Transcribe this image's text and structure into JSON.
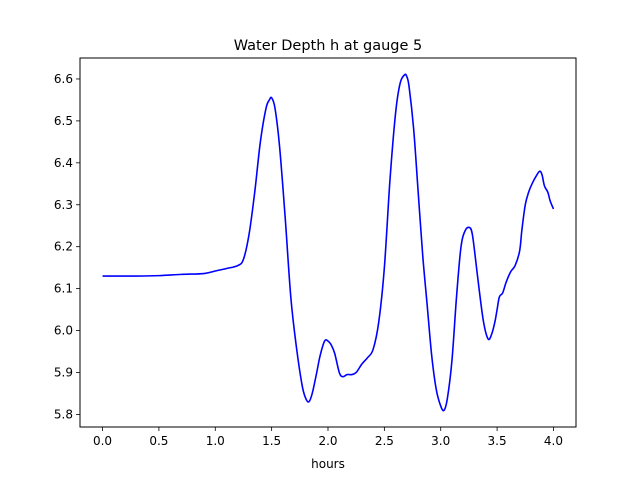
{
  "chart_data": {
    "type": "line",
    "title": "Water Depth h at gauge 5",
    "xlabel": "hours",
    "ylabel": "",
    "xlim": [
      -0.2,
      4.2
    ],
    "ylim": [
      5.77,
      6.65
    ],
    "xticks": [
      0.0,
      0.5,
      1.0,
      1.5,
      2.0,
      2.5,
      3.0,
      3.5,
      4.0
    ],
    "xtick_labels": [
      "0.0",
      "0.5",
      "1.0",
      "1.5",
      "2.0",
      "2.5",
      "3.0",
      "3.5",
      "4.0"
    ],
    "yticks": [
      5.8,
      5.9,
      6.0,
      6.1,
      6.2,
      6.3,
      6.4,
      6.5,
      6.6
    ],
    "ytick_labels": [
      "5.8",
      "5.9",
      "6.0",
      "6.1",
      "6.2",
      "6.3",
      "6.4",
      "6.5",
      "6.6"
    ],
    "grid": false,
    "series": [
      {
        "color": "#0000ff",
        "x": [
          0.0,
          0.3,
          0.5,
          0.7,
          0.9,
          1.0,
          1.1,
          1.2,
          1.25,
          1.3,
          1.35,
          1.4,
          1.45,
          1.48,
          1.5,
          1.53,
          1.57,
          1.62,
          1.67,
          1.72,
          1.77,
          1.8,
          1.83,
          1.86,
          1.9,
          1.93,
          1.97,
          2.0,
          2.03,
          2.06,
          2.1,
          2.13,
          2.17,
          2.21,
          2.25,
          2.3,
          2.35,
          2.4,
          2.45,
          2.5,
          2.55,
          2.6,
          2.64,
          2.68,
          2.7,
          2.72,
          2.76,
          2.8,
          2.84,
          2.88,
          2.92,
          2.96,
          3.0,
          3.03,
          3.06,
          3.1,
          3.14,
          3.18,
          3.22,
          3.26,
          3.28,
          3.3,
          3.34,
          3.38,
          3.42,
          3.45,
          3.48,
          3.5,
          3.52,
          3.55,
          3.58,
          3.62,
          3.66,
          3.7,
          3.72,
          3.75,
          3.78,
          3.81,
          3.85,
          3.88,
          3.9,
          3.92,
          3.95,
          3.97,
          4.0
        ],
        "y": [
          6.13,
          6.13,
          6.131,
          6.134,
          6.136,
          6.142,
          6.148,
          6.155,
          6.17,
          6.23,
          6.33,
          6.45,
          6.53,
          6.55,
          6.555,
          6.53,
          6.44,
          6.27,
          6.08,
          5.96,
          5.87,
          5.84,
          5.83,
          5.85,
          5.9,
          5.94,
          5.975,
          5.975,
          5.965,
          5.945,
          5.9,
          5.89,
          5.895,
          5.895,
          5.9,
          5.92,
          5.935,
          5.955,
          6.02,
          6.15,
          6.36,
          6.52,
          6.59,
          6.61,
          6.605,
          6.58,
          6.48,
          6.33,
          6.18,
          6.06,
          5.94,
          5.86,
          5.82,
          5.81,
          5.84,
          5.93,
          6.08,
          6.2,
          6.24,
          6.245,
          6.23,
          6.19,
          6.1,
          6.02,
          5.98,
          5.99,
          6.02,
          6.05,
          6.08,
          6.09,
          6.115,
          6.14,
          6.155,
          6.19,
          6.24,
          6.3,
          6.33,
          6.35,
          6.37,
          6.38,
          6.37,
          6.345,
          6.33,
          6.31,
          6.29
        ]
      }
    ]
  }
}
